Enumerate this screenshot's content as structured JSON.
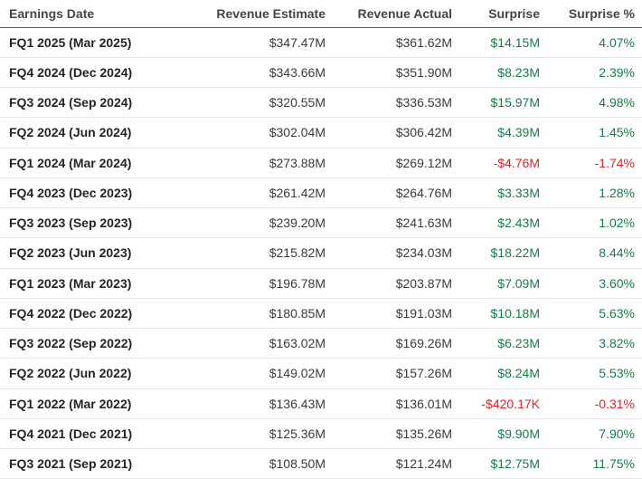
{
  "colors": {
    "positive": "#147d46",
    "negative": "#d3262c"
  },
  "table": {
    "columns": [
      {
        "label": "Earnings Date"
      },
      {
        "label": "Revenue Estimate"
      },
      {
        "label": "Revenue Actual"
      },
      {
        "label": "Surprise"
      },
      {
        "label": "Surprise %"
      }
    ],
    "rows": [
      {
        "date": "FQ1 2025 (Mar 2025)",
        "estimate": "$347.47M",
        "actual": "$361.62M",
        "surprise": "$14.15M",
        "surprise_pct": "4.07%",
        "sentiment": "positive"
      },
      {
        "date": "FQ4 2024 (Dec 2024)",
        "estimate": "$343.66M",
        "actual": "$351.90M",
        "surprise": "$8.23M",
        "surprise_pct": "2.39%",
        "sentiment": "positive"
      },
      {
        "date": "FQ3 2024 (Sep 2024)",
        "estimate": "$320.55M",
        "actual": "$336.53M",
        "surprise": "$15.97M",
        "surprise_pct": "4.98%",
        "sentiment": "positive"
      },
      {
        "date": "FQ2 2024 (Jun 2024)",
        "estimate": "$302.04M",
        "actual": "$306.42M",
        "surprise": "$4.39M",
        "surprise_pct": "1.45%",
        "sentiment": "positive"
      },
      {
        "date": "FQ1 2024 (Mar 2024)",
        "estimate": "$273.88M",
        "actual": "$269.12M",
        "surprise": "-$4.76M",
        "surprise_pct": "-1.74%",
        "sentiment": "negative"
      },
      {
        "date": "FQ4 2023 (Dec 2023)",
        "estimate": "$261.42M",
        "actual": "$264.76M",
        "surprise": "$3.33M",
        "surprise_pct": "1.28%",
        "sentiment": "positive"
      },
      {
        "date": "FQ3 2023 (Sep 2023)",
        "estimate": "$239.20M",
        "actual": "$241.63M",
        "surprise": "$2.43M",
        "surprise_pct": "1.02%",
        "sentiment": "positive"
      },
      {
        "date": "FQ2 2023 (Jun 2023)",
        "estimate": "$215.82M",
        "actual": "$234.03M",
        "surprise": "$18.22M",
        "surprise_pct": "8.44%",
        "sentiment": "positive"
      },
      {
        "date": "FQ1 2023 (Mar 2023)",
        "estimate": "$196.78M",
        "actual": "$203.87M",
        "surprise": "$7.09M",
        "surprise_pct": "3.60%",
        "sentiment": "positive"
      },
      {
        "date": "FQ4 2022 (Dec 2022)",
        "estimate": "$180.85M",
        "actual": "$191.03M",
        "surprise": "$10.18M",
        "surprise_pct": "5.63%",
        "sentiment": "positive"
      },
      {
        "date": "FQ3 2022 (Sep 2022)",
        "estimate": "$163.02M",
        "actual": "$169.26M",
        "surprise": "$6.23M",
        "surprise_pct": "3.82%",
        "sentiment": "positive"
      },
      {
        "date": "FQ2 2022 (Jun 2022)",
        "estimate": "$149.02M",
        "actual": "$157.26M",
        "surprise": "$8.24M",
        "surprise_pct": "5.53%",
        "sentiment": "positive"
      },
      {
        "date": "FQ1 2022 (Mar 2022)",
        "estimate": "$136.43M",
        "actual": "$136.01M",
        "surprise": "-$420.17K",
        "surprise_pct": "-0.31%",
        "sentiment": "negative"
      },
      {
        "date": "FQ4 2021 (Dec 2021)",
        "estimate": "$125.36M",
        "actual": "$135.26M",
        "surprise": "$9.90M",
        "surprise_pct": "7.90%",
        "sentiment": "positive"
      },
      {
        "date": "FQ3 2021 (Sep 2021)",
        "estimate": "$108.50M",
        "actual": "$121.24M",
        "surprise": "$12.75M",
        "surprise_pct": "11.75%",
        "sentiment": "positive"
      }
    ]
  }
}
